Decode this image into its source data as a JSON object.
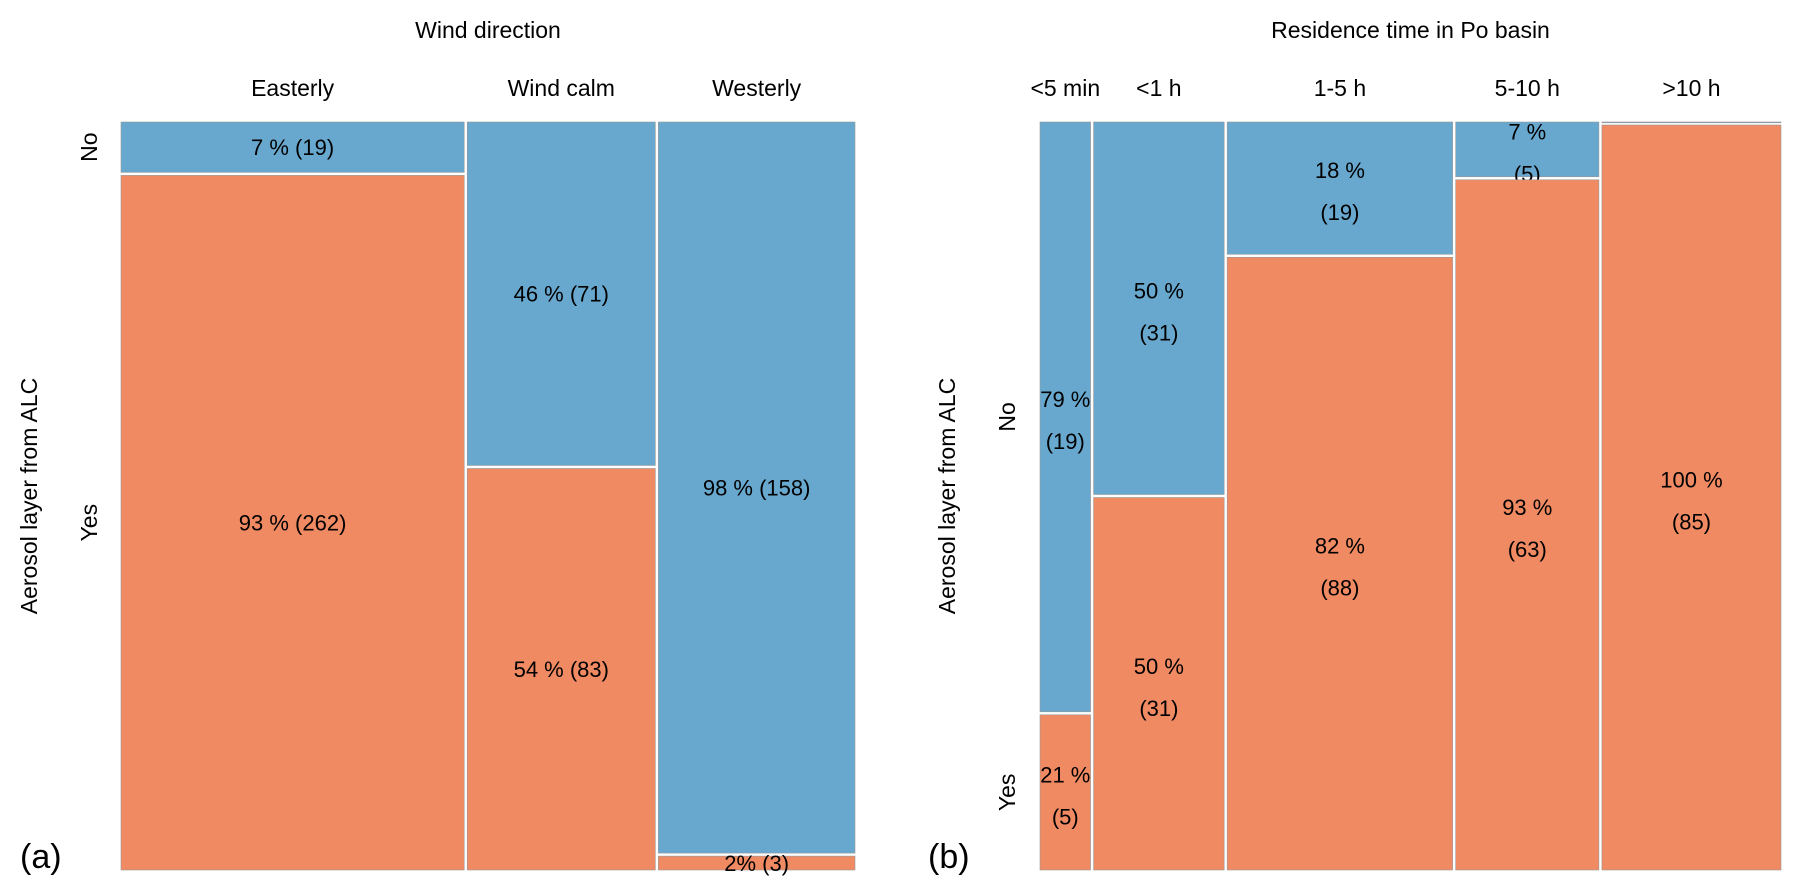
{
  "chart_data": [
    {
      "type": "mosaic",
      "panel_label": "(a)",
      "title": "Wind direction",
      "ylabel": "Aerosol layer from ALC",
      "categories": [
        "Easterly",
        "Wind calm",
        "Westerly"
      ],
      "levels": [
        "No",
        "Yes"
      ],
      "series": [
        {
          "name": "No",
          "color": "#68a8ce",
          "counts": [
            19,
            71,
            158
          ],
          "labels": [
            "7 % (19)",
            "46 % (71)",
            "98 % (158)"
          ]
        },
        {
          "name": "Yes",
          "color": "#ef8a62",
          "counts": [
            262,
            83,
            3
          ],
          "labels": [
            "93 % (262)",
            "54 % (83)",
            "2% (3)"
          ]
        }
      ]
    },
    {
      "type": "mosaic",
      "panel_label": "(b)",
      "title": "Residence time in Po basin",
      "ylabel": "Aerosol layer from ALC",
      "categories": [
        "<5 min",
        "<1 h",
        "1-5 h",
        "5-10 h",
        ">10 h"
      ],
      "levels": [
        "No",
        "Yes"
      ],
      "series": [
        {
          "name": "No",
          "color": "#68a8ce",
          "counts": [
            19,
            31,
            19,
            5,
            0
          ],
          "labels": [
            [
              "79 %",
              "(19)"
            ],
            [
              "50 %",
              "(31)"
            ],
            [
              "18 %",
              "(19)"
            ],
            [
              "7 %",
              "(5)"
            ],
            [
              "",
              ""
            ]
          ]
        },
        {
          "name": "Yes",
          "color": "#ef8a62",
          "counts": [
            5,
            31,
            88,
            63,
            85
          ],
          "labels": [
            [
              "21 %",
              "(5)"
            ],
            [
              "50 %",
              "(31)"
            ],
            [
              "82 %",
              "(88)"
            ],
            [
              "93 %",
              "(63)"
            ],
            [
              "100 %",
              "(85)"
            ]
          ]
        }
      ]
    }
  ]
}
